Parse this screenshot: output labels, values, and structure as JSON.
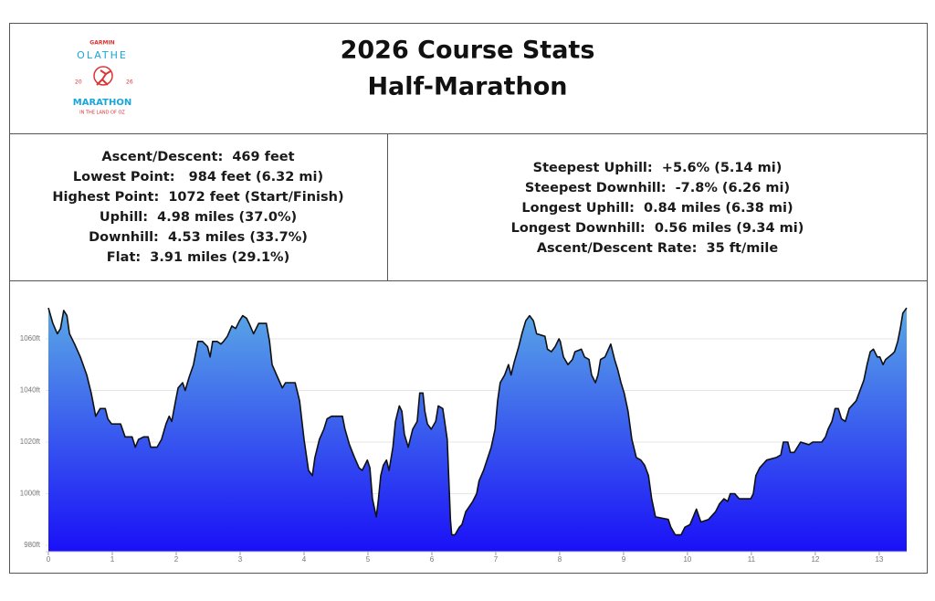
{
  "header": {
    "title": "2026 Course Stats",
    "subtitle": "Half-Marathon",
    "logo": {
      "brand": "GARMIN",
      "city": "OLATHE",
      "year_left": "20",
      "year_right": "26",
      "event": "MARATHON",
      "tagline": "IN THE LAND OF OZ"
    }
  },
  "stats": {
    "left": [
      "Ascent/Descent:  469 feet",
      "Lowest Point:   984 feet (6.32 mi)",
      "Highest Point:  1072 feet (Start/Finish)",
      "Uphill:  4.98 miles (37.0%)",
      "Downhill:  4.53 miles (33.7%)",
      "Flat:  3.91 miles (29.1%)"
    ],
    "right": [
      "Steepest Uphill:  +5.6% (5.14 mi)",
      "Steepest Downhill:  -7.8% (6.26 mi)",
      "Longest Uphill:  0.84 miles (6.38 mi)",
      "Longest Downhill:  0.56 miles (9.34 mi)",
      "Ascent/Descent Rate:  35 ft/mile"
    ]
  },
  "chart_data": {
    "type": "area",
    "x": [
      0,
      0.07,
      0.14,
      0.19,
      0.24,
      0.29,
      0.33,
      0.41,
      0.5,
      0.6,
      0.67,
      0.74,
      0.81,
      0.89,
      0.93,
      0.99,
      1.13,
      1.2,
      1.31,
      1.36,
      1.41,
      1.49,
      1.56,
      1.6,
      1.7,
      1.77,
      1.84,
      1.89,
      1.93,
      1.99,
      2.03,
      2.1,
      2.14,
      2.2,
      2.27,
      2.34,
      2.41,
      2.49,
      2.53,
      2.57,
      2.64,
      2.7,
      2.74,
      2.8,
      2.87,
      2.93,
      2.99,
      3.04,
      3.1,
      3.14,
      3.21,
      3.29,
      3.41,
      3.46,
      3.5,
      3.57,
      3.66,
      3.71,
      3.86,
      3.93,
      4.0,
      4.07,
      4.13,
      4.17,
      4.24,
      4.31,
      4.36,
      4.43,
      4.6,
      4.64,
      4.71,
      4.79,
      4.86,
      4.91,
      4.99,
      5.03,
      5.07,
      5.13,
      5.16,
      5.2,
      5.24,
      5.29,
      5.33,
      5.39,
      5.43,
      5.49,
      5.53,
      5.57,
      5.63,
      5.7,
      5.77,
      5.81,
      5.86,
      5.89,
      5.93,
      5.99,
      6.06,
      6.1,
      6.17,
      6.2,
      6.24,
      6.29,
      6.31,
      6.36,
      6.43,
      6.47,
      6.53,
      6.64,
      6.7,
      6.74,
      6.81,
      6.93,
      6.99,
      7.03,
      7.07,
      7.14,
      7.2,
      7.24,
      7.29,
      7.36,
      7.41,
      7.47,
      7.53,
      7.59,
      7.64,
      7.77,
      7.81,
      7.87,
      7.93,
      7.99,
      8.01,
      8.06,
      8.13,
      8.2,
      8.24,
      8.34,
      8.39,
      8.46,
      8.5,
      8.56,
      8.6,
      8.64,
      8.71,
      8.8,
      8.86,
      8.91,
      8.96,
      9.01,
      9.07,
      9.13,
      9.2,
      9.27,
      9.33,
      9.39,
      9.44,
      9.5,
      9.7,
      9.74,
      9.81,
      9.9,
      9.96,
      10.04,
      10.09,
      10.14,
      10.21,
      10.33,
      10.44,
      10.5,
      10.57,
      10.63,
      10.67,
      10.74,
      10.81,
      10.99,
      11.03,
      11.07,
      11.13,
      11.24,
      11.39,
      11.46,
      11.5,
      11.57,
      11.61,
      11.67,
      11.77,
      11.9,
      11.96,
      12.1,
      12.16,
      12.2,
      12.26,
      12.31,
      12.36,
      12.41,
      12.47,
      12.53,
      12.64,
      12.7,
      12.76,
      12.81,
      12.86,
      12.91,
      12.97,
      13.01,
      13.06,
      13.1,
      13.2,
      13.24,
      13.29,
      13.33,
      13.37,
      13.43
    ],
    "values": [
      1072,
      1066,
      1062,
      1064,
      1071,
      1069,
      1062,
      1058,
      1053,
      1046,
      1039,
      1030,
      1033,
      1033,
      1029,
      1027,
      1027,
      1022,
      1022,
      1018,
      1021,
      1022,
      1022,
      1018,
      1018,
      1021,
      1027,
      1030,
      1028,
      1036,
      1041,
      1043,
      1040,
      1045,
      1050,
      1059,
      1059,
      1057,
      1053,
      1059,
      1059,
      1058,
      1059,
      1061,
      1065,
      1064,
      1067,
      1069,
      1068,
      1066,
      1062,
      1066,
      1066,
      1059,
      1050,
      1046,
      1041,
      1043,
      1043,
      1036,
      1021,
      1009,
      1007,
      1014,
      1021,
      1025,
      1029,
      1030,
      1030,
      1025,
      1019,
      1014,
      1010,
      1009,
      1013,
      1010,
      998,
      991,
      997,
      1007,
      1011,
      1013,
      1009,
      1018,
      1028,
      1034,
      1032,
      1023,
      1018,
      1025,
      1028,
      1039,
      1039,
      1032,
      1027,
      1025,
      1028,
      1034,
      1033,
      1028,
      1021,
      990,
      984,
      984,
      987,
      988,
      993,
      997,
      1000,
      1005,
      1009,
      1018,
      1025,
      1036,
      1043,
      1046,
      1050,
      1046,
      1051,
      1057,
      1062,
      1067,
      1069,
      1067,
      1062,
      1061,
      1056,
      1055,
      1057,
      1060,
      1059,
      1053,
      1050,
      1052,
      1055,
      1056,
      1053,
      1052,
      1046,
      1043,
      1046,
      1052,
      1053,
      1058,
      1052,
      1048,
      1043,
      1039,
      1032,
      1021,
      1014,
      1013,
      1011,
      1007,
      998,
      991,
      990,
      987,
      984,
      984,
      987,
      988,
      991,
      994,
      989,
      990,
      993,
      996,
      998,
      997,
      1000,
      1000,
      998,
      998,
      1000,
      1007,
      1010,
      1013,
      1014,
      1015,
      1020,
      1020,
      1016,
      1016,
      1020,
      1019,
      1020,
      1020,
      1022,
      1025,
      1028,
      1033,
      1033,
      1029,
      1028,
      1033,
      1036,
      1040,
      1044,
      1050,
      1055,
      1056,
      1053,
      1053,
      1050,
      1052,
      1054,
      1055,
      1059,
      1064,
      1070,
      1072
    ],
    "xlim": [
      0,
      13.43
    ],
    "ylim": [
      977.5,
      1081.6
    ],
    "xticks": [
      0,
      1,
      2,
      3,
      4,
      5,
      6,
      7,
      8,
      9,
      10,
      11,
      12,
      13
    ],
    "yticks": [
      {
        "value": 980,
        "label": "980ft"
      },
      {
        "value": 1000,
        "label": "1000ft"
      },
      {
        "value": 1020,
        "label": "1020ft"
      },
      {
        "value": 1040,
        "label": "1040ft"
      },
      {
        "value": 1060,
        "label": "1060ft"
      }
    ],
    "grid": true,
    "line_color": "#111111",
    "fill_gradient": [
      "#5aa8e6",
      "#1a10f7"
    ]
  }
}
